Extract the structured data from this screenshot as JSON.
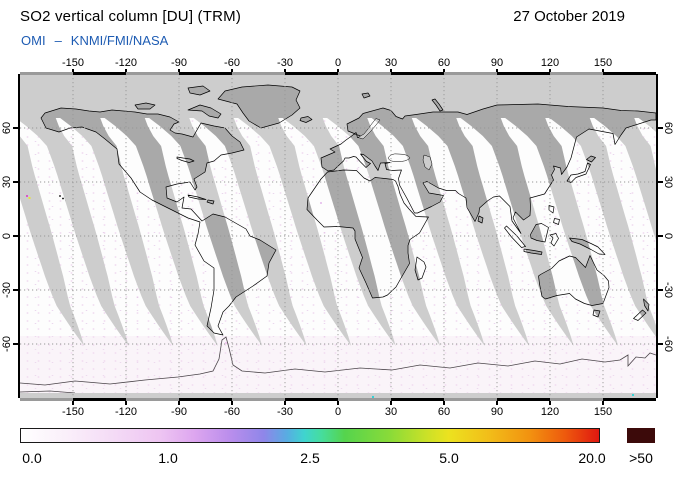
{
  "header": {
    "title": "SO2 vertical column [DU] (TRM)",
    "instrument": "OMI",
    "separator": "–",
    "agencies": "KNMI/FMI/NASA",
    "date": "27 October 2019"
  },
  "axes": {
    "lon_ticks": [
      "-150",
      "-120",
      "-90",
      "-60",
      "-30",
      "0",
      "30",
      "60",
      "90",
      "120",
      "150"
    ],
    "lat_ticks": [
      "60",
      "30",
      "0",
      "-30",
      "-60"
    ]
  },
  "colorbar": {
    "ticks": [
      "0.0",
      "1.0",
      "2.5",
      "5.0",
      "20.0"
    ],
    "overflow_label": ">50",
    "overflow_color": "#3c0a0a",
    "accent_subtitle_color": "#1e5cb3"
  },
  "map": {
    "no_data_ocean_color": "#cdcdcd",
    "no_data_land_color": "#a9a9a9",
    "data_fill_color": "#fdfdfd",
    "coastline_color": "#000000"
  },
  "chart_data": {
    "type": "heatmap",
    "title": "SO2 vertical column [DU] (TRM)",
    "date": "27 October 2019",
    "legend_scale_DU": [
      0.0,
      1.0,
      2.5,
      5.0,
      20.0
    ],
    "overflow_threshold_DU": 50,
    "lon_ticks": [
      -150,
      -120,
      -90,
      -60,
      -30,
      0,
      30,
      60,
      90,
      120,
      150
    ],
    "lat_ticks": [
      60,
      30,
      0,
      -30,
      -60
    ],
    "coverage": "sunlit OMI orbit swaths (white, near-0 DU with pale pink noise); diagonal gray bands between orbits and polar-night region north of ~63N contain no data"
  }
}
